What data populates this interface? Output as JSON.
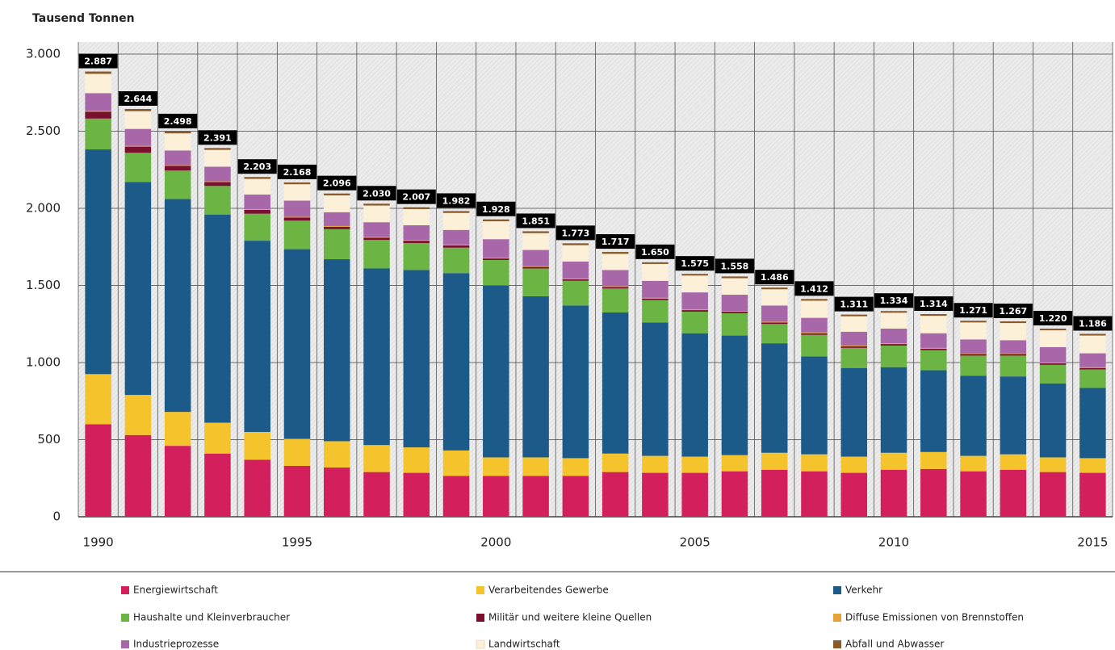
{
  "chart_data": {
    "type": "stacked-bar",
    "y_label": "Tausend Tonnen",
    "categories": [
      1990,
      null,
      null,
      null,
      null,
      1995,
      null,
      null,
      null,
      null,
      2000,
      null,
      null,
      null,
      null,
      2005,
      null,
      null,
      null,
      null,
      2010,
      null,
      null,
      null,
      null,
      2015
    ],
    "ylim": [
      0,
      3000
    ],
    "yticks": [
      0,
      500,
      {
        "value": 1000,
        "label": "1.000"
      },
      {
        "value": 1500,
        "label": "1.500"
      },
      {
        "value": 2000,
        "label": "2.000"
      },
      {
        "value": 2500,
        "label": "2.500"
      },
      {
        "value": 3000,
        "label": "3.000"
      }
    ],
    "grid": true,
    "series": [
      {
        "name": "Energiewirtschaft",
        "color": "#d31f5c",
        "values": [
          600,
          530,
          460,
          410,
          370,
          330,
          320,
          290,
          285,
          265,
          265,
          265,
          265,
          290,
          285,
          285,
          295,
          305,
          295,
          285,
          305,
          310,
          295,
          305,
          290,
          285
        ]
      },
      {
        "name": "Verarbeitendes Gewerbe",
        "color": "#f5c32c",
        "values": [
          325,
          260,
          220,
          200,
          180,
          175,
          170,
          175,
          165,
          165,
          120,
          120,
          115,
          120,
          110,
          105,
          105,
          110,
          110,
          105,
          110,
          110,
          100,
          100,
          95,
          95
        ]
      },
      {
        "name": "Verkehr",
        "color": "#1c5a8a",
        "values": [
          1457,
          1380,
          1380,
          1350,
          1240,
          1230,
          1180,
          1145,
          1150,
          1150,
          1115,
          1045,
          990,
          915,
          865,
          800,
          775,
          710,
          635,
          575,
          555,
          530,
          520,
          505,
          480,
          455
        ]
      },
      {
        "name": "Haushalte und Kleinverbraucher",
        "color": "#6cb544",
        "values": [
          200,
          190,
          185,
          185,
          175,
          185,
          195,
          185,
          175,
          165,
          165,
          180,
          160,
          155,
          145,
          140,
          145,
          125,
          140,
          130,
          140,
          130,
          130,
          135,
          120,
          120
        ]
      },
      {
        "name": "Militär und weitere kleine Quellen",
        "color": "#7a1030",
        "values": [
          45,
          40,
          30,
          25,
          25,
          20,
          15,
          15,
          15,
          15,
          10,
          10,
          10,
          10,
          10,
          10,
          10,
          10,
          10,
          10,
          10,
          10,
          10,
          10,
          10,
          10
        ]
      },
      {
        "name": "Diffuse Emissionen von Brennstoffen",
        "color": "#e8a03a",
        "values": [
          5,
          5,
          5,
          5,
          5,
          5,
          5,
          5,
          5,
          5,
          5,
          5,
          5,
          5,
          5,
          5,
          5,
          5,
          5,
          5,
          5,
          5,
          5,
          5,
          5,
          5
        ]
      },
      {
        "name": "Industrieprozesse",
        "color": "#a767a8",
        "values": [
          115,
          110,
          95,
          95,
          95,
          105,
          90,
          95,
          95,
          95,
          120,
          105,
          110,
          105,
          110,
          110,
          105,
          105,
          95,
          90,
          95,
          95,
          90,
          85,
          100,
          90
        ]
      },
      {
        "name": "Landwirtschaft",
        "color": "#fdf0d8",
        "values": [
          125,
          115,
          111,
          109,
          101,
          106,
          109,
          108,
          105,
          110,
          116,
          109,
          106,
          105,
          109,
          109,
          107,
          105,
          111,
          100,
          103,
          113,
          110,
          111,
          109,
          115
        ]
      },
      {
        "name": "Abfall und Abwasser",
        "color": "#8a5a2b",
        "values": [
          15,
          14,
          12,
          12,
          12,
          12,
          12,
          12,
          12,
          12,
          12,
          12,
          12,
          12,
          11,
          11,
          11,
          11,
          11,
          11,
          11,
          11,
          11,
          11,
          11,
          11
        ]
      }
    ],
    "totals": {
      "values": [
        2887,
        2644,
        2498,
        2391,
        2203,
        2168,
        2096,
        2030,
        2007,
        1982,
        1928,
        1851,
        1773,
        1717,
        1650,
        1575,
        1558,
        1486,
        1412,
        1311,
        1334,
        1314,
        1271,
        1267,
        1220,
        1186
      ],
      "value_labels": [
        "2.887",
        "2.644",
        "2.498",
        "2.391",
        "2.203",
        "2.168",
        "2.096",
        "2.030",
        "2.007",
        "1.982",
        "1.928",
        "1.851",
        "1.773",
        "1.717",
        "1.650",
        "1.575",
        "1.558",
        "1.486",
        "1.412",
        "1.311",
        "1.334",
        "1.314",
        "1.271",
        "1.267",
        "1.220",
        "1.186"
      ]
    }
  }
}
